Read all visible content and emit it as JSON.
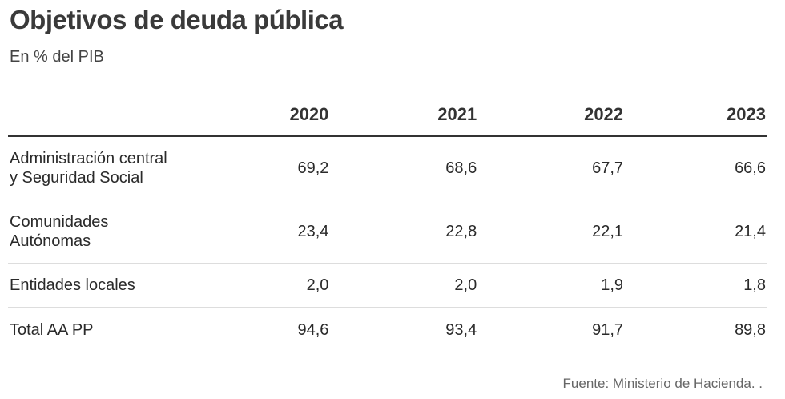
{
  "chart_data": {
    "type": "table",
    "title": "Objetivos de deuda pública",
    "subtitle": "En % del PIB",
    "columns": [
      "2020",
      "2021",
      "2022",
      "2023"
    ],
    "rows": [
      {
        "label_lines": [
          "Administración central",
          "y Seguridad Social"
        ],
        "values": [
          "69,2",
          "68,6",
          "67,7",
          "66,6"
        ]
      },
      {
        "label_lines": [
          "Comunidades",
          "Autónomas"
        ],
        "values": [
          "23,4",
          "22,8",
          "22,1",
          "21,4"
        ]
      },
      {
        "label_lines": [
          "Entidades locales"
        ],
        "values": [
          "2,0",
          "2,0",
          "1,9",
          "1,8"
        ]
      },
      {
        "label_lines": [
          "Total AA PP"
        ],
        "values": [
          "94,6",
          "93,4",
          "91,7",
          "89,8"
        ]
      }
    ],
    "source": "Fuente: Ministerio de Hacienda. ."
  }
}
